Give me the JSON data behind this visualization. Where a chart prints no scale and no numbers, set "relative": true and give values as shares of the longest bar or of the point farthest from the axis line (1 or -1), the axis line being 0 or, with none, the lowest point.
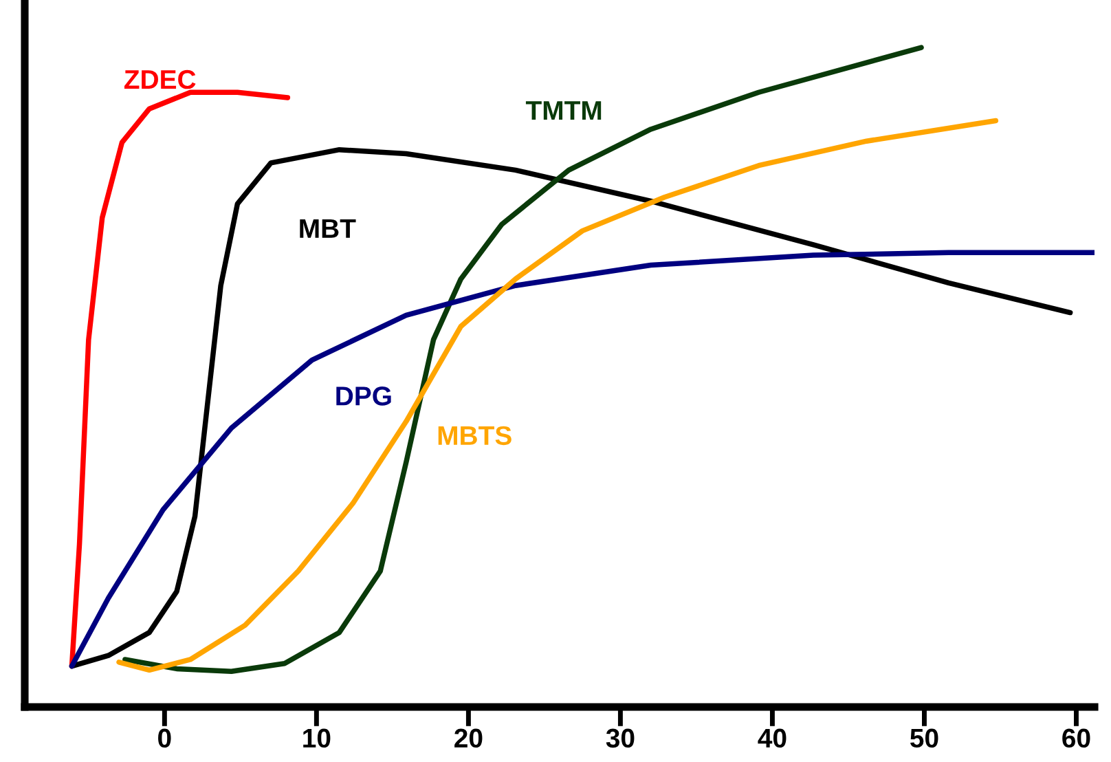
{
  "chart_data": {
    "type": "line",
    "relative": true,
    "xlim": [
      -9.2,
      61.2
    ],
    "xticks": [
      0,
      10,
      20,
      30,
      40,
      50,
      60
    ],
    "grid": false,
    "legend": false,
    "tick_labels": "x",
    "marker": "none",
    "line_style": "solid",
    "series": [
      {
        "name": "ZDEC",
        "color": "#ff0000",
        "x": [
          -6.1,
          -5.6,
          -5.0,
          -4.1,
          -2.8,
          -1.0,
          1.7,
          4.8,
          8.1
        ],
        "values": [
          0.062,
          0.247,
          0.557,
          0.742,
          0.856,
          0.907,
          0.932,
          0.932,
          0.924
        ]
      },
      {
        "name": "MBT",
        "color": "#000000",
        "x": [
          -6.1,
          -3.7,
          -1.0,
          0.8,
          2.0,
          2.8,
          3.7,
          4.8,
          7.0,
          11.5,
          15.9,
          23.1,
          32.0,
          42.7,
          51.6,
          59.6
        ],
        "values": [
          0.062,
          0.078,
          0.113,
          0.175,
          0.289,
          0.454,
          0.639,
          0.763,
          0.825,
          0.845,
          0.839,
          0.814,
          0.767,
          0.701,
          0.643,
          0.598
        ]
      },
      {
        "name": "TMTM",
        "color": "#0a3a0a",
        "x": [
          -2.6,
          0.8,
          4.4,
          7.9,
          11.5,
          14.2,
          15.9,
          17.7,
          19.5,
          22.2,
          26.6,
          32.0,
          39.1,
          49.8
        ],
        "values": [
          0.072,
          0.058,
          0.054,
          0.066,
          0.113,
          0.206,
          0.371,
          0.557,
          0.649,
          0.732,
          0.814,
          0.876,
          0.932,
          1.0
        ]
      },
      {
        "name": "DPG",
        "color": "#000080",
        "x": [
          -6.1,
          -3.7,
          -0.1,
          4.4,
          9.7,
          15.9,
          23.1,
          32.0,
          42.7,
          51.6,
          61.2
        ],
        "values": [
          0.062,
          0.165,
          0.299,
          0.423,
          0.526,
          0.594,
          0.639,
          0.67,
          0.685,
          0.689,
          0.689
        ]
      },
      {
        "name": "MBTS",
        "color": "#ffa500",
        "x": [
          -3.0,
          -1.0,
          1.7,
          5.3,
          8.8,
          12.4,
          15.9,
          19.5,
          23.1,
          27.5,
          32.9,
          39.1,
          46.2,
          54.7
        ],
        "values": [
          0.068,
          0.056,
          0.072,
          0.124,
          0.206,
          0.309,
          0.433,
          0.577,
          0.649,
          0.722,
          0.773,
          0.821,
          0.858,
          0.889
        ]
      }
    ]
  }
}
